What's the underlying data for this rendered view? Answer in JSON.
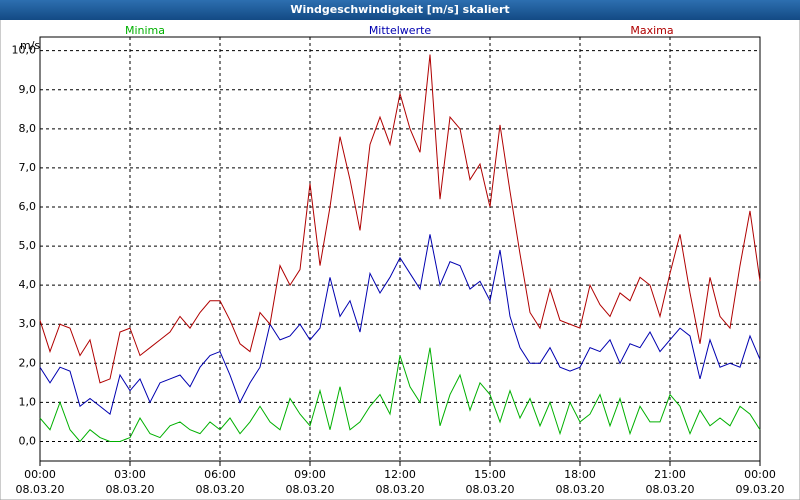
{
  "chart_data": {
    "type": "line",
    "title": "Windgeschwindigkeit [m/s] skaliert",
    "y_label": "m/s",
    "x": [
      0,
      20,
      40,
      60,
      80,
      100,
      120,
      140,
      160,
      180,
      200,
      220,
      240,
      260,
      280,
      300,
      320,
      340,
      360,
      380,
      400,
      420,
      440,
      460,
      480,
      500,
      520,
      540,
      560,
      580,
      600,
      620,
      640,
      660,
      680,
      700,
      720,
      740,
      760,
      780,
      800,
      820,
      840,
      860,
      880,
      900,
      920,
      940,
      960,
      980,
      1000,
      1020,
      1040,
      1060,
      1080,
      1100,
      1120,
      1140,
      1160,
      1180,
      1200,
      1220,
      1240,
      1260,
      1280,
      1300,
      1320,
      1340,
      1360,
      1380,
      1400,
      1420,
      1440
    ],
    "series": [
      {
        "name": "Minima",
        "color": "#00b000",
        "values": [
          0.6,
          0.3,
          1.0,
          0.3,
          0.0,
          0.3,
          0.1,
          0.0,
          0.0,
          0.1,
          0.6,
          0.2,
          0.1,
          0.4,
          0.5,
          0.3,
          0.2,
          0.5,
          0.3,
          0.6,
          0.2,
          0.5,
          0.9,
          0.5,
          0.3,
          1.1,
          0.7,
          0.4,
          1.3,
          0.3,
          1.4,
          0.3,
          0.5,
          0.9,
          1.2,
          0.7,
          2.2,
          1.4,
          1.0,
          2.4,
          0.4,
          1.2,
          1.7,
          0.8,
          1.5,
          1.2,
          0.5,
          1.3,
          0.6,
          1.1,
          0.4,
          1.0,
          0.2,
          1.0,
          0.5,
          0.7,
          1.2,
          0.4,
          1.1,
          0.2,
          0.9,
          0.5,
          0.5,
          1.2,
          0.9,
          0.2,
          0.8,
          0.4,
          0.6,
          0.4,
          0.9,
          0.7,
          0.3
        ]
      },
      {
        "name": "Mittelwerte",
        "color": "#0000b0",
        "values": [
          1.9,
          1.5,
          1.9,
          1.8,
          0.9,
          1.1,
          0.9,
          0.7,
          1.7,
          1.3,
          1.6,
          1.0,
          1.5,
          1.6,
          1.7,
          1.4,
          1.9,
          2.2,
          2.3,
          1.7,
          1.0,
          1.5,
          1.9,
          3.0,
          2.6,
          2.7,
          3.0,
          2.6,
          2.9,
          4.2,
          3.2,
          3.6,
          2.8,
          4.3,
          3.8,
          4.2,
          4.7,
          4.3,
          3.9,
          5.3,
          4.0,
          4.6,
          4.5,
          3.9,
          4.1,
          3.6,
          4.9,
          3.2,
          2.4,
          2.0,
          2.0,
          2.4,
          1.9,
          1.8,
          1.9,
          2.4,
          2.3,
          2.6,
          2.0,
          2.5,
          2.4,
          2.8,
          2.3,
          2.6,
          2.9,
          2.7,
          1.6,
          2.6,
          1.9,
          2.0,
          1.9,
          2.7,
          2.1
        ]
      },
      {
        "name": "Maxima",
        "color": "#b00000",
        "values": [
          3.1,
          2.3,
          3.0,
          2.9,
          2.2,
          2.6,
          1.5,
          1.6,
          2.8,
          2.9,
          2.2,
          2.4,
          2.6,
          2.8,
          3.2,
          2.9,
          3.3,
          3.6,
          3.6,
          3.1,
          2.5,
          2.3,
          3.3,
          3.0,
          4.5,
          4.0,
          4.4,
          6.6,
          4.5,
          6.0,
          7.8,
          6.7,
          5.4,
          7.6,
          8.3,
          7.6,
          8.9,
          8.0,
          7.4,
          9.9,
          6.2,
          8.3,
          8.0,
          6.7,
          7.1,
          6.0,
          8.1,
          6.4,
          4.8,
          3.3,
          2.9,
          3.9,
          3.1,
          3.0,
          2.9,
          4.0,
          3.5,
          3.2,
          3.8,
          3.6,
          4.2,
          4.0,
          3.2,
          4.3,
          5.3,
          3.8,
          2.5,
          4.2,
          3.2,
          2.9,
          4.5,
          5.9,
          4.1
        ]
      }
    ],
    "xlim": [
      0,
      1440
    ],
    "xticks": [
      {
        "value": 0,
        "label": "00:00 08.03.20"
      },
      {
        "value": 180,
        "label": "03:00 08.03.20"
      },
      {
        "value": 360,
        "label": "06:00 08.03.20"
      },
      {
        "value": 540,
        "label": "09:00 08.03.20"
      },
      {
        "value": 720,
        "label": "12:00 08.03.20"
      },
      {
        "value": 900,
        "label": "15:00 08.03.20"
      },
      {
        "value": 1080,
        "label": "18:00 08.03.20"
      },
      {
        "value": 1260,
        "label": "21:00 08.03.20"
      },
      {
        "value": 1440,
        "label": "00:00 09.03.20"
      }
    ],
    "ylim": [
      -0.5,
      10.35
    ],
    "yticks": [
      {
        "value": 0,
        "label": "0,0"
      },
      {
        "value": 1,
        "label": "1,0"
      },
      {
        "value": 2,
        "label": "2,0"
      },
      {
        "value": 3,
        "label": "3,0"
      },
      {
        "value": 4,
        "label": "4,0"
      },
      {
        "value": 5,
        "label": "5,0"
      },
      {
        "value": 6,
        "label": "6,0"
      },
      {
        "value": 7,
        "label": "7,0"
      },
      {
        "value": 8,
        "label": "8,0"
      },
      {
        "value": 9,
        "label": "9,0"
      },
      {
        "value": 10,
        "label": "10,0"
      }
    ],
    "grid": true
  }
}
